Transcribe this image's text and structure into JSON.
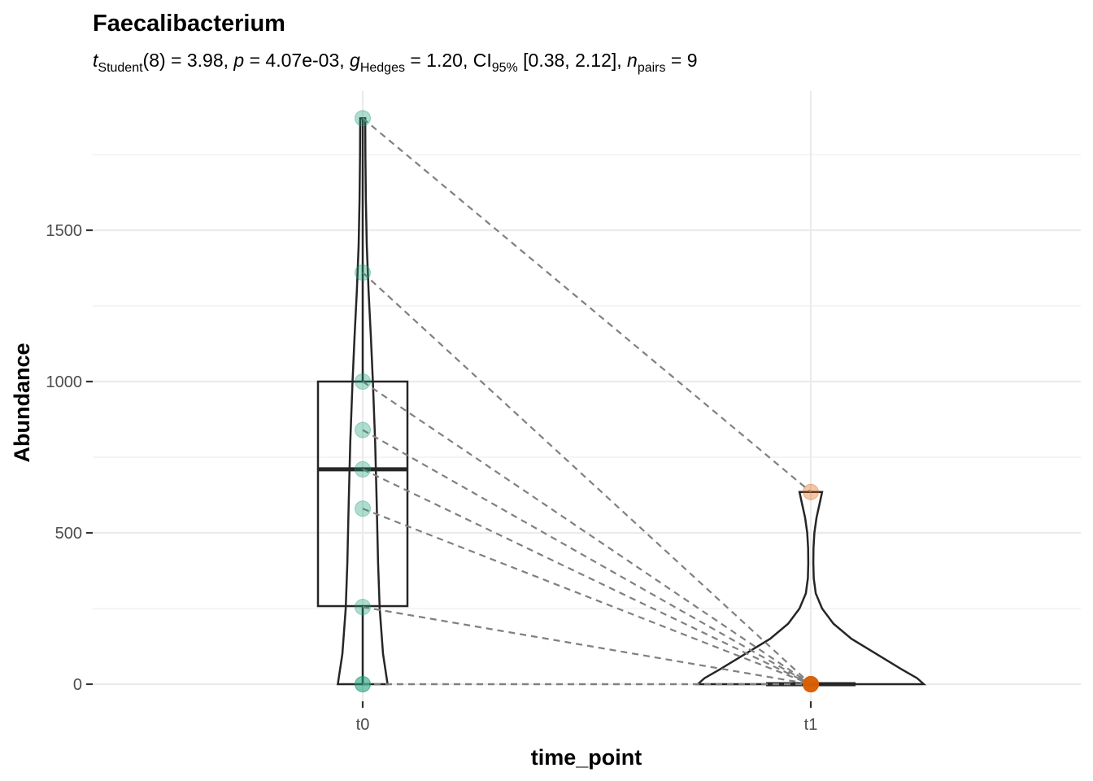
{
  "chart_data": {
    "type": "violin",
    "title": "Faecalibacterium",
    "subtitle": {
      "text": "t_Student(8) = 3.98, p = 4.07e-03, g_Hedges = 1.20, CI_95% [0.38, 2.12], n_pairs = 9",
      "statistic_symbol": "t",
      "statistic_sub": "Student",
      "df": "(8) = 3.98, ",
      "p_symbol": "p",
      "p_value": " = 4.07e-03, ",
      "effect_symbol": "g",
      "effect_hat": "^",
      "effect_sub": "Hedges",
      "effect_value": " = 1.20, CI",
      "ci_sub": "95%",
      "ci_value": " [0.38, 2.12], ",
      "n_symbol": "n",
      "n_sub": "pairs",
      "n_value": " = 9"
    },
    "xlabel": "time_point",
    "ylabel": "Abundance",
    "categories": [
      "t0",
      "t1"
    ],
    "ylim": [
      -70,
      1925
    ],
    "yticks": [
      0,
      500,
      1000,
      1500
    ],
    "ytick_labels": [
      "0",
      "500",
      "1000",
      "1500"
    ],
    "grid": true,
    "pairs": [
      {
        "t0": 1870,
        "t1": 635
      },
      {
        "t0": 1360,
        "t1": 0
      },
      {
        "t0": 1000,
        "t1": 0
      },
      {
        "t0": 840,
        "t1": 0
      },
      {
        "t0": 710,
        "t1": 0
      },
      {
        "t0": 580,
        "t1": 0
      },
      {
        "t0": 255,
        "t1": 0
      },
      {
        "t0": 0,
        "t1": 0
      },
      {
        "t0": 0,
        "t1": 0
      }
    ],
    "boxplots": [
      {
        "category": "t0",
        "min": 0,
        "q1": 258,
        "median": 710,
        "q3": 1000,
        "max": 1870
      },
      {
        "category": "t1",
        "min": 0,
        "q1": 0,
        "median": 0,
        "q3": 0,
        "max": 0
      }
    ],
    "violins": [
      {
        "category": "t0",
        "density": [
          [
            0,
            0.11
          ],
          [
            100,
            0.09
          ],
          [
            250,
            0.075
          ],
          [
            400,
            0.068
          ],
          [
            600,
            0.062
          ],
          [
            800,
            0.055
          ],
          [
            1000,
            0.045
          ],
          [
            1150,
            0.036
          ],
          [
            1300,
            0.026
          ],
          [
            1450,
            0.018
          ],
          [
            1600,
            0.014
          ],
          [
            1750,
            0.012
          ],
          [
            1870,
            0.011
          ]
        ]
      },
      {
        "category": "t1",
        "density": [
          [
            0,
            0.5
          ],
          [
            20,
            0.47
          ],
          [
            50,
            0.4
          ],
          [
            100,
            0.29
          ],
          [
            150,
            0.18
          ],
          [
            200,
            0.1
          ],
          [
            250,
            0.05
          ],
          [
            300,
            0.022
          ],
          [
            350,
            0.013
          ],
          [
            400,
            0.011
          ],
          [
            450,
            0.012
          ],
          [
            500,
            0.016
          ],
          [
            550,
            0.025
          ],
          [
            600,
            0.04
          ],
          [
            635,
            0.05
          ]
        ]
      }
    ],
    "colors": {
      "t0": "#1b9e77",
      "t1": "#d95f02"
    }
  }
}
